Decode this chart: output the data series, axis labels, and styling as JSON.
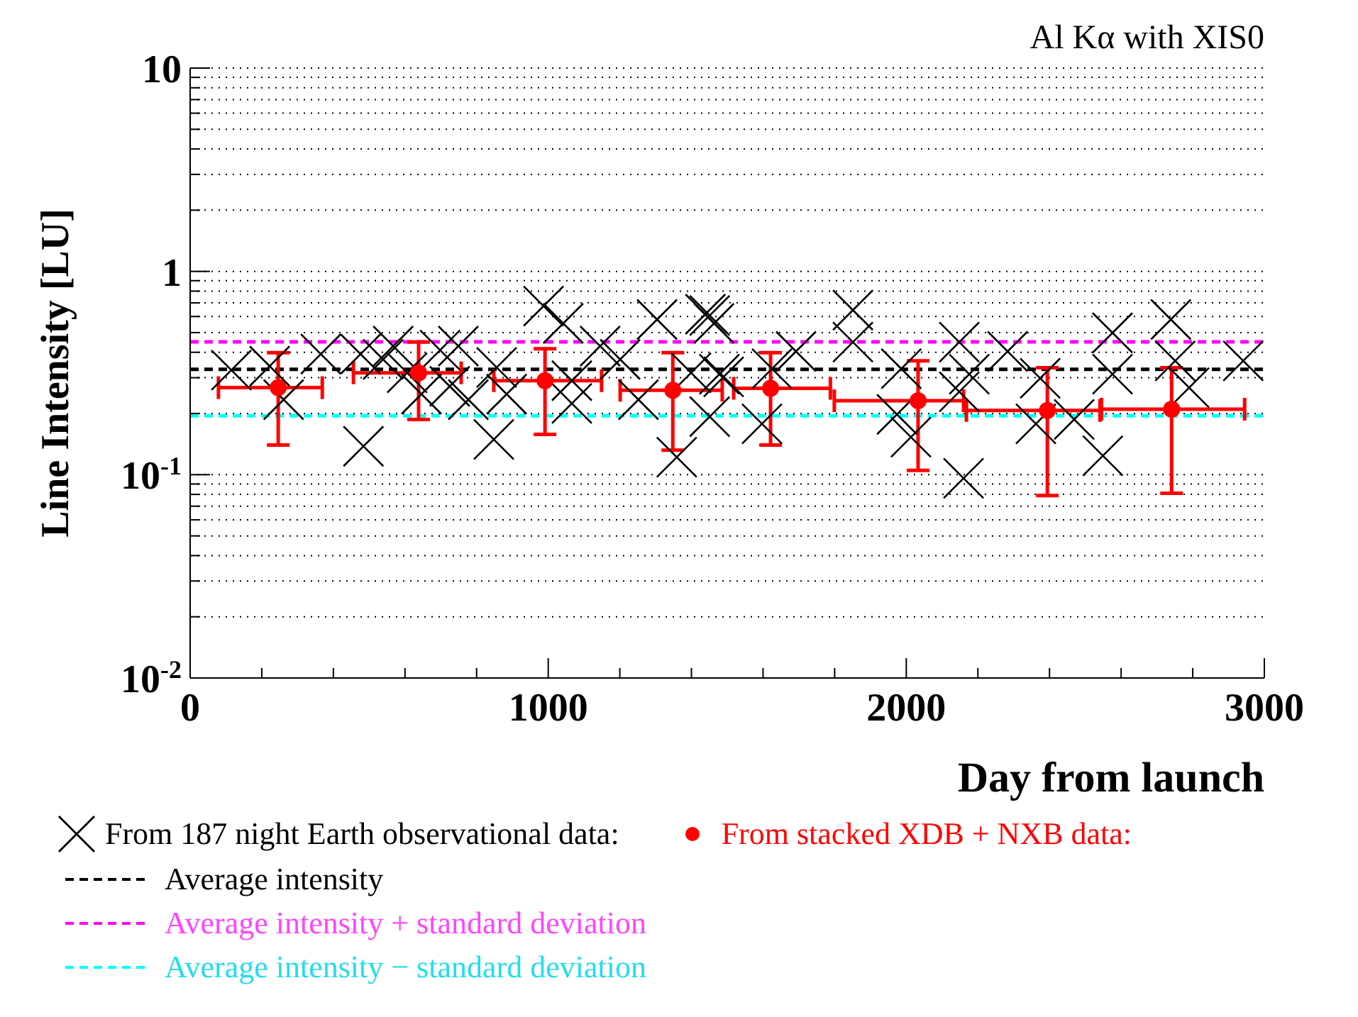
{
  "chart_data": {
    "type": "scatter",
    "xlabel": "Day from launch",
    "ylabel": "Line Intensity [LU]",
    "annotations": [
      "Al Kα with XIS0"
    ],
    "xlim": [
      0,
      3000
    ],
    "xticks": [
      0,
      {
        "value": 200,
        "label": null
      },
      {
        "value": 400,
        "label": null
      },
      {
        "value": 600,
        "label": null
      },
      {
        "value": 800,
        "label": null
      },
      1000,
      {
        "value": 1200,
        "label": null
      },
      {
        "value": 1400,
        "label": null
      },
      {
        "value": 1600,
        "label": null
      },
      {
        "value": 1800,
        "label": null
      },
      2000,
      {
        "value": 2200,
        "label": null
      },
      {
        "value": 2400,
        "label": null
      },
      {
        "value": 2600,
        "label": null
      },
      {
        "value": 2800,
        "label": null
      },
      3000
    ],
    "ylim": [
      0.01,
      10
    ],
    "yticks": [
      {
        "value": 0.01,
        "label": "10$^{-2}$"
      },
      {
        "value": 0.02,
        "label": null
      },
      {
        "value": 0.03,
        "label": null
      },
      {
        "value": 0.04,
        "label": null
      },
      {
        "value": 0.05,
        "label": null
      },
      {
        "value": 0.06,
        "label": null
      },
      {
        "value": 0.07,
        "label": null
      },
      {
        "value": 0.08,
        "label": null
      },
      {
        "value": 0.09,
        "label": null
      },
      {
        "value": 0.1,
        "label": "10$^{-1}$"
      },
      {
        "value": 0.2,
        "label": null
      },
      {
        "value": 0.3,
        "label": null
      },
      {
        "value": 0.4,
        "label": null
      },
      {
        "value": 0.5,
        "label": null
      },
      {
        "value": 0.6,
        "label": null
      },
      {
        "value": 0.7,
        "label": null
      },
      {
        "value": 0.8,
        "label": null
      },
      {
        "value": 0.9,
        "label": null
      },
      1,
      {
        "value": 2,
        "label": null
      },
      {
        "value": 3,
        "label": null
      },
      {
        "value": 4,
        "label": null
      },
      {
        "value": 5,
        "label": null
      },
      {
        "value": 6,
        "label": null
      },
      {
        "value": 7,
        "label": null
      },
      {
        "value": 8,
        "label": null
      },
      {
        "value": 9,
        "label": null
      },
      10
    ],
    "log": "y",
    "grid": "y",
    "legend": "bottom",
    "series": [
      {
        "name": "From 187 night Earth observational data:",
        "type": "scatter",
        "marker": "cross",
        "color": "#000000",
        "x": [
          115,
          222,
          261,
          365,
          476,
          484,
          539,
          567,
          606,
          646,
          698,
          725,
          749,
          777,
          856,
          848,
          884,
          987,
          1042,
          1066,
          1066,
          1145,
          1201,
          1252,
          1304,
          1359,
          1399,
          1439,
          1463,
          1451,
          1490,
          1451,
          1478,
          1625,
          1597,
          1692,
          1851,
          1851,
          1986,
          1974,
          2013,
          2148,
          2160,
          2176,
          2148,
          2283,
          2374,
          2362,
          2469,
          2549,
          2576,
          2576,
          2739,
          2751,
          2790,
          2941
        ],
        "values": [
          0.327,
          0.342,
          0.234,
          0.392,
          0.392,
          0.138,
          0.369,
          0.429,
          0.317,
          0.249,
          0.41,
          0.272,
          0.429,
          0.234,
          0.337,
          0.149,
          0.249,
          0.675,
          0.555,
          0.29,
          0.224,
          0.429,
          0.369,
          0.234,
          0.58,
          0.122,
          0.317,
          0.616,
          0.555,
          0.193,
          0.303,
          0.607,
          0.312,
          0.332,
          0.178,
          0.404,
          0.645,
          0.449,
          0.332,
          0.198,
          0.153,
          0.449,
          0.096,
          0.312,
          0.256,
          0.404,
          0.298,
          0.178,
          0.187,
          0.124,
          0.499,
          0.312,
          0.58,
          0.363,
          0.268,
          0.363
        ]
      },
      {
        "name": "From stacked XDB + NXB data:",
        "type": "scatter",
        "marker": "circle",
        "color": "#ff0000",
        "x": [
          246,
          638,
          991,
          1348,
          1621,
          2033,
          2394,
          2741
        ],
        "values": [
          0.268,
          0.317,
          0.29,
          0.26,
          0.266,
          0.231,
          0.207,
          0.21
        ],
        "errors": [
          [
            0.14,
            0.398
          ],
          [
            0.187,
            0.449
          ],
          [
            0.158,
            0.416
          ],
          [
            0.132,
            0.398
          ],
          [
            0.14,
            0.398
          ],
          [
            0.105,
            0.363
          ],
          [
            0.079,
            0.336
          ],
          [
            0.081,
            0.336
          ]
        ],
        "xerrors": [
          [
            79,
            369
          ],
          [
            456,
            757
          ],
          [
            848,
            1149
          ],
          [
            1201,
            1486
          ],
          [
            1518,
            1788
          ],
          [
            1799,
            2160
          ],
          [
            2168,
            2541
          ],
          [
            2545,
            2945
          ]
        ]
      }
    ],
    "ref_lines": [
      {
        "axis": "y",
        "value": 0.33,
        "label": "Average intensity",
        "color": "#000000",
        "line_style": "dashed"
      },
      {
        "axis": "y",
        "value": 0.45,
        "label": "Average intensity + standard deviation",
        "color": "#ff00ff",
        "line_style": "dashed"
      },
      {
        "axis": "y",
        "value": 0.195,
        "label": "Average intensity − standard deviation",
        "color": "#00ffff",
        "line_style": "dashed"
      }
    ]
  }
}
